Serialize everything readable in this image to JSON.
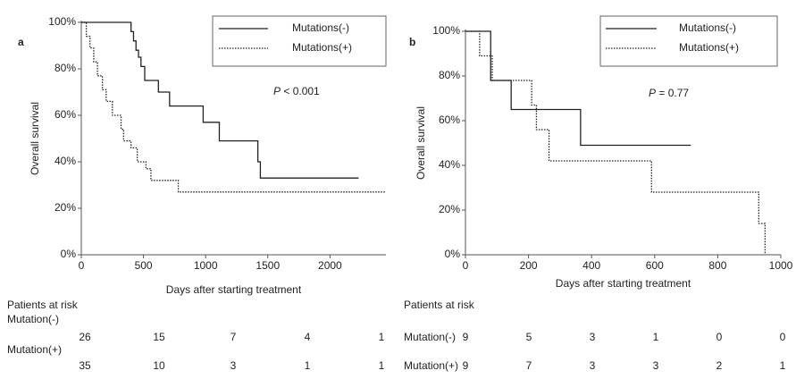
{
  "chart_data": [
    {
      "type": "step",
      "panel_label": "a",
      "xlabel": "Days after starting treatment",
      "ylabel": "Overall survival",
      "annotation": "P < 0.001",
      "xlim": [
        0,
        2450
      ],
      "xticks": [
        0,
        500,
        1000,
        1500,
        2000
      ],
      "ylim": [
        0,
        100
      ],
      "yticks": [
        {
          "value": 0,
          "label": "0%"
        },
        {
          "value": 20,
          "label": "20%"
        },
        {
          "value": 40,
          "label": "40%"
        },
        {
          "value": 60,
          "label": "60%"
        },
        {
          "value": 80,
          "label": "80%"
        },
        {
          "value": 100,
          "label": "100%"
        }
      ],
      "legend": "upper right",
      "series": [
        {
          "name": "Mutations(-)",
          "color": "#222222",
          "style": "solid",
          "x": [
            0,
            400,
            420,
            440,
            460,
            480,
            510,
            620,
            710,
            980,
            1110,
            1420,
            1440,
            2230
          ],
          "values": [
            100,
            96,
            92,
            88,
            85,
            81,
            75,
            70,
            64,
            57,
            49,
            40,
            33,
            33
          ]
        },
        {
          "name": "Mutations(+)",
          "color": "#222222",
          "style": "dotted",
          "x": [
            0,
            40,
            70,
            100,
            130,
            170,
            200,
            250,
            320,
            340,
            400,
            450,
            520,
            560,
            780,
            2450
          ],
          "values": [
            100,
            94,
            89,
            83,
            77,
            71,
            66,
            60,
            54,
            49,
            46,
            40,
            37,
            32,
            27,
            27
          ]
        }
      ],
      "risk_table": {
        "title": "Patients at risk",
        "rows": [
          {
            "label": "Mutation(-)",
            "counts": [
              26,
              15,
              7,
              4,
              1
            ]
          },
          {
            "label": "Mutation(+)",
            "counts": [
              35,
              10,
              3,
              1,
              1
            ]
          }
        ]
      }
    },
    {
      "type": "step",
      "panel_label": "b",
      "xlabel": "Days after starting treatment",
      "ylabel": "Overall survival",
      "annotation": "P = 0.77",
      "xlim": [
        0,
        1000
      ],
      "xticks": [
        0,
        200,
        400,
        600,
        800,
        1000
      ],
      "ylim": [
        0,
        100
      ],
      "yticks": [
        {
          "value": 0,
          "label": "0%"
        },
        {
          "value": 20,
          "label": "20%"
        },
        {
          "value": 40,
          "label": "40%"
        },
        {
          "value": 60,
          "label": "60%"
        },
        {
          "value": 80,
          "label": "80%"
        },
        {
          "value": 100,
          "label": "100%"
        }
      ],
      "legend": "upper right",
      "series": [
        {
          "name": "Mutations(-)",
          "color": "#222222",
          "style": "solid",
          "x": [
            0,
            80,
            145,
            365,
            715
          ],
          "values": [
            100,
            78,
            65,
            49,
            49
          ]
        },
        {
          "name": "Mutations(+)",
          "color": "#222222",
          "style": "dotted",
          "x": [
            0,
            45,
            85,
            210,
            225,
            265,
            590,
            930,
            950
          ],
          "values": [
            100,
            89,
            78,
            67,
            56,
            42,
            28,
            14,
            0
          ]
        }
      ],
      "risk_table": {
        "title": "Patients at risk",
        "rows": [
          {
            "label": "Mutation(-)",
            "counts": [
              9,
              5,
              3,
              1,
              0,
              0
            ]
          },
          {
            "label": "Mutation(+)",
            "counts": [
              9,
              7,
              3,
              3,
              2,
              1
            ]
          }
        ]
      }
    }
  ]
}
